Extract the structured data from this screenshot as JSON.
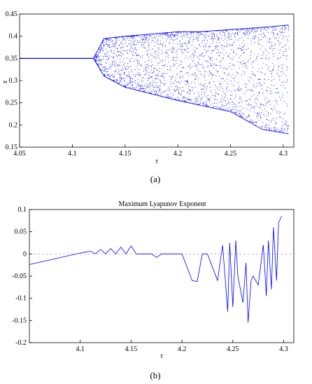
{
  "chart_data": [
    {
      "type": "scatter",
      "subtype": "bifurcation-diagram",
      "caption": "(a)",
      "title": "",
      "xlabel": "τ",
      "ylabel": "x",
      "xlim": [
        4.05,
        4.31
      ],
      "ylim": [
        0.15,
        0.45
      ],
      "xticks": [
        "4.05",
        "4.1",
        "4.15",
        "4.2",
        "4.25",
        "4.3"
      ],
      "yticks": [
        "0.15",
        "0.2",
        "0.25",
        "0.3",
        "0.35",
        "0.4",
        "0.45"
      ],
      "color": "#0000ff",
      "series": [
        {
          "points": [
            [
              4.05,
              0.35
            ],
            [
              4.1,
              0.35
            ],
            [
              4.12,
              0.35
            ],
            [
              4.13,
              0.31
            ],
            [
              4.13,
              0.395
            ],
            [
              4.15,
              0.285
            ],
            [
              4.15,
              0.4
            ],
            [
              4.175,
              0.27
            ],
            [
              4.175,
              0.405
            ],
            [
              4.2,
              0.255
            ],
            [
              4.2,
              0.41
            ],
            [
              4.22,
              0.245
            ],
            [
              4.22,
              0.41
            ],
            [
              4.25,
              0.23
            ],
            [
              4.25,
              0.415
            ],
            [
              4.28,
              0.19
            ],
            [
              4.28,
              0.42
            ],
            [
              4.305,
              0.18
            ],
            [
              4.305,
              0.425
            ]
          ]
        }
      ]
    },
    {
      "type": "line",
      "caption": "(b)",
      "title": "Maximum Lyapunov Exponent",
      "xlabel": "τ",
      "ylabel": "",
      "xlim": [
        4.05,
        4.31
      ],
      "ylim": [
        -0.2,
        0.1
      ],
      "xticks": [
        "4.1",
        "4.15",
        "4.2",
        "4.25",
        "4.3"
      ],
      "yticks": [
        "-0.2",
        "-0.15",
        "-0.1",
        "-0.05",
        "0",
        "0.05",
        "0.1"
      ],
      "reference_line": 0,
      "color": "#0000ff",
      "series": [
        {
          "x": [
            4.05,
            4.1,
            4.105,
            4.11,
            4.115,
            4.12,
            4.125,
            4.13,
            4.135,
            4.14,
            4.145,
            4.15,
            4.155,
            4.16,
            4.17,
            4.175,
            4.18,
            4.185,
            4.19,
            4.2,
            4.21,
            4.215,
            4.22,
            4.225,
            4.23,
            4.235,
            4.24,
            4.245,
            4.247,
            4.25,
            4.253,
            4.255,
            4.26,
            4.263,
            4.265,
            4.268,
            4.27,
            4.275,
            4.28,
            4.283,
            4.285,
            4.288,
            4.29,
            4.293,
            4.295,
            4.298
          ],
          "y": [
            -0.024,
            0.002,
            0.004,
            0.006,
            0.0,
            0.01,
            0.0,
            0.012,
            0.0,
            0.015,
            0.0,
            0.018,
            0.0,
            0.0,
            0.0,
            -0.008,
            0.0,
            0.0,
            0.0,
            0.0,
            -0.06,
            -0.062,
            0.0,
            0.0,
            -0.03,
            -0.06,
            0.02,
            -0.13,
            0.025,
            -0.12,
            0.03,
            -0.05,
            -0.11,
            -0.02,
            -0.155,
            -0.06,
            -0.05,
            -0.07,
            0.02,
            -0.095,
            0.03,
            -0.08,
            0.06,
            -0.06,
            0.07,
            0.085
          ]
        }
      ]
    }
  ]
}
